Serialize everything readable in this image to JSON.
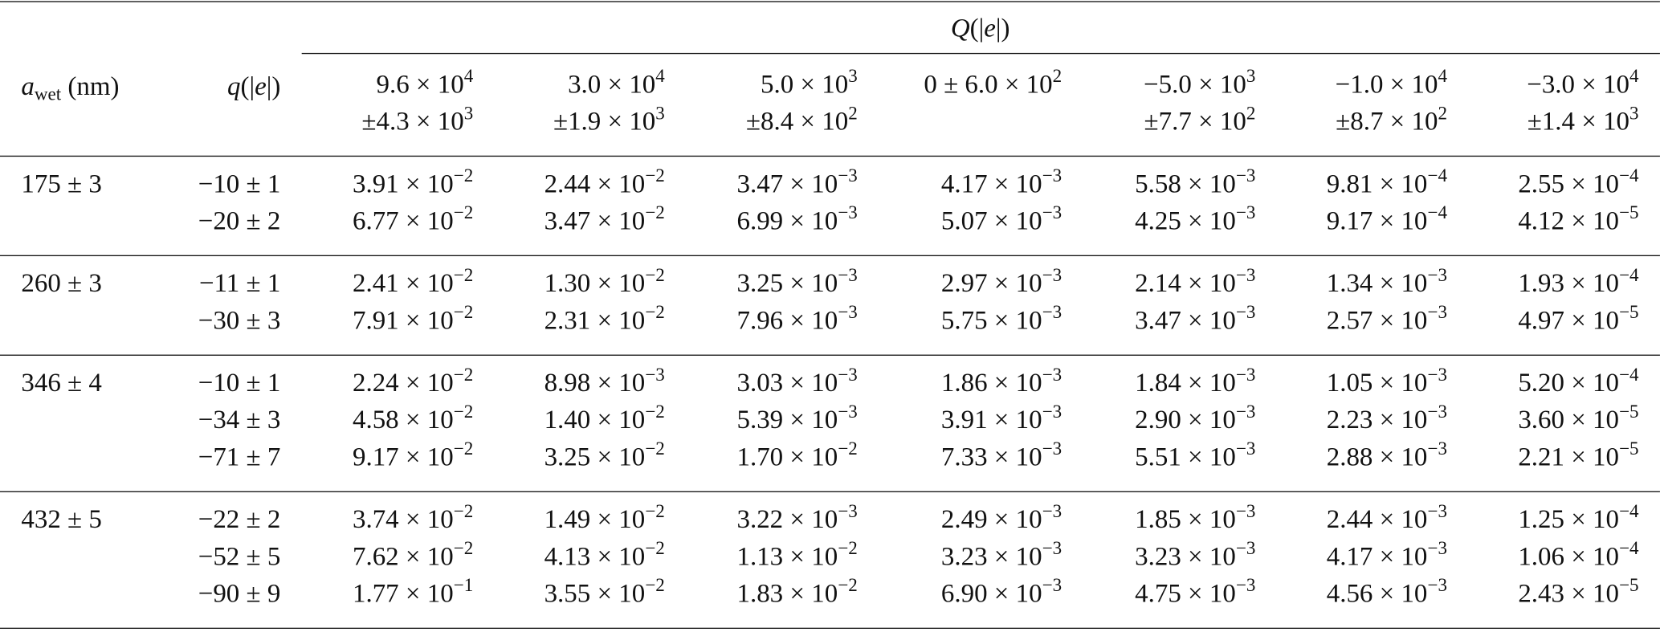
{
  "header": {
    "a_wet": [
      "a",
      "wet",
      " (nm)"
    ],
    "q": [
      "q",
      "(|",
      "e",
      "|)"
    ],
    "Q": [
      "Q",
      "(|",
      "e",
      "|)"
    ],
    "columns": [
      [
        [
          "9.6 × 10",
          "4"
        ],
        [
          "±4.3 × 10",
          "3"
        ]
      ],
      [
        [
          "3.0 × 10",
          "4"
        ],
        [
          "±1.9 × 10",
          "3"
        ]
      ],
      [
        [
          "5.0 × 10",
          "3"
        ],
        [
          "±8.4 × 10",
          "2"
        ]
      ],
      [
        [
          "0 ± 6.0 × 10",
          "2"
        ]
      ],
      [
        [
          "−5.0 × 10",
          "3"
        ],
        [
          "±7.7 × 10",
          "2"
        ]
      ],
      [
        [
          "−1.0 × 10",
          "4"
        ],
        [
          "±8.7 × 10",
          "2"
        ]
      ],
      [
        [
          "−3.0 × 10",
          "4"
        ],
        [
          "±1.4 × 10",
          "3"
        ]
      ]
    ]
  },
  "groups": [
    {
      "a_wet": "175 ± 3",
      "rows": [
        {
          "q": "−10 ± 1",
          "cells": [
            [
              "3.91 × 10",
              "−2"
            ],
            [
              "2.44 × 10",
              "−2"
            ],
            [
              "3.47 × 10",
              "−3"
            ],
            [
              "4.17 × 10",
              "−3"
            ],
            [
              "5.58 × 10",
              "−3"
            ],
            [
              "9.81 × 10",
              "−4"
            ],
            [
              "2.55 × 10",
              "−4"
            ]
          ]
        },
        {
          "q": "−20 ± 2",
          "cells": [
            [
              "6.77 × 10",
              "−2"
            ],
            [
              "3.47 × 10",
              "−2"
            ],
            [
              "6.99 × 10",
              "−3"
            ],
            [
              "5.07 × 10",
              "−3"
            ],
            [
              "4.25 × 10",
              "−3"
            ],
            [
              "9.17 × 10",
              "−4"
            ],
            [
              "4.12 × 10",
              "−5"
            ]
          ]
        }
      ]
    },
    {
      "a_wet": "260 ± 3",
      "rows": [
        {
          "q": "−11 ± 1",
          "cells": [
            [
              "2.41 × 10",
              "−2"
            ],
            [
              "1.30 × 10",
              "−2"
            ],
            [
              "3.25 × 10",
              "−3"
            ],
            [
              "2.97 × 10",
              "−3"
            ],
            [
              "2.14 × 10",
              "−3"
            ],
            [
              "1.34 × 10",
              "−3"
            ],
            [
              "1.93 × 10",
              "−4"
            ]
          ]
        },
        {
          "q": "−30 ± 3",
          "cells": [
            [
              "7.91 × 10",
              "−2"
            ],
            [
              "2.31 × 10",
              "−2"
            ],
            [
              "7.96 × 10",
              "−3"
            ],
            [
              "5.75 × 10",
              "−3"
            ],
            [
              "3.47 × 10",
              "−3"
            ],
            [
              "2.57 × 10",
              "−3"
            ],
            [
              "4.97 × 10",
              "−5"
            ]
          ]
        }
      ]
    },
    {
      "a_wet": "346 ± 4",
      "rows": [
        {
          "q": "−10 ± 1",
          "cells": [
            [
              "2.24 × 10",
              "−2"
            ],
            [
              "8.98 × 10",
              "−3"
            ],
            [
              "3.03 × 10",
              "−3"
            ],
            [
              "1.86 × 10",
              "−3"
            ],
            [
              "1.84 × 10",
              "−3"
            ],
            [
              "1.05 × 10",
              "−3"
            ],
            [
              "5.20 × 10",
              "−4"
            ]
          ]
        },
        {
          "q": "−34 ± 3",
          "cells": [
            [
              "4.58 × 10",
              "−2"
            ],
            [
              "1.40 × 10",
              "−2"
            ],
            [
              "5.39 × 10",
              "−3"
            ],
            [
              "3.91 × 10",
              "−3"
            ],
            [
              "2.90 × 10",
              "−3"
            ],
            [
              "2.23 × 10",
              "−3"
            ],
            [
              "3.60 × 10",
              "−5"
            ]
          ]
        },
        {
          "q": "−71 ± 7",
          "cells": [
            [
              "9.17 × 10",
              "−2"
            ],
            [
              "3.25 × 10",
              "−2"
            ],
            [
              "1.70 × 10",
              "−2"
            ],
            [
              "7.33 × 10",
              "−3"
            ],
            [
              "5.51 × 10",
              "−3"
            ],
            [
              "2.88 × 10",
              "−3"
            ],
            [
              "2.21 × 10",
              "−5"
            ]
          ]
        }
      ]
    },
    {
      "a_wet": "432 ± 5",
      "rows": [
        {
          "q": "−22 ± 2",
          "cells": [
            [
              "3.74 × 10",
              "−2"
            ],
            [
              "1.49 × 10",
              "−2"
            ],
            [
              "3.22 × 10",
              "−3"
            ],
            [
              "2.49 × 10",
              "−3"
            ],
            [
              "1.85 × 10",
              "−3"
            ],
            [
              "2.44 × 10",
              "−3"
            ],
            [
              "1.25 × 10",
              "−4"
            ]
          ]
        },
        {
          "q": "−52 ± 5",
          "cells": [
            [
              "7.62 × 10",
              "−2"
            ],
            [
              "4.13 × 10",
              "−2"
            ],
            [
              "1.13 × 10",
              "−2"
            ],
            [
              "3.23 × 10",
              "−3"
            ],
            [
              "3.23 × 10",
              "−3"
            ],
            [
              "4.17 × 10",
              "−3"
            ],
            [
              "1.06 × 10",
              "−4"
            ]
          ]
        },
        {
          "q": "−90 ± 9",
          "cells": [
            [
              "1.77 × 10",
              "−1"
            ],
            [
              "3.55 × 10",
              "−2"
            ],
            [
              "1.83 × 10",
              "−2"
            ],
            [
              "6.90 × 10",
              "−3"
            ],
            [
              "4.75 × 10",
              "−3"
            ],
            [
              "4.56 × 10",
              "−3"
            ],
            [
              "2.43 × 10",
              "−5"
            ]
          ]
        }
      ]
    }
  ]
}
